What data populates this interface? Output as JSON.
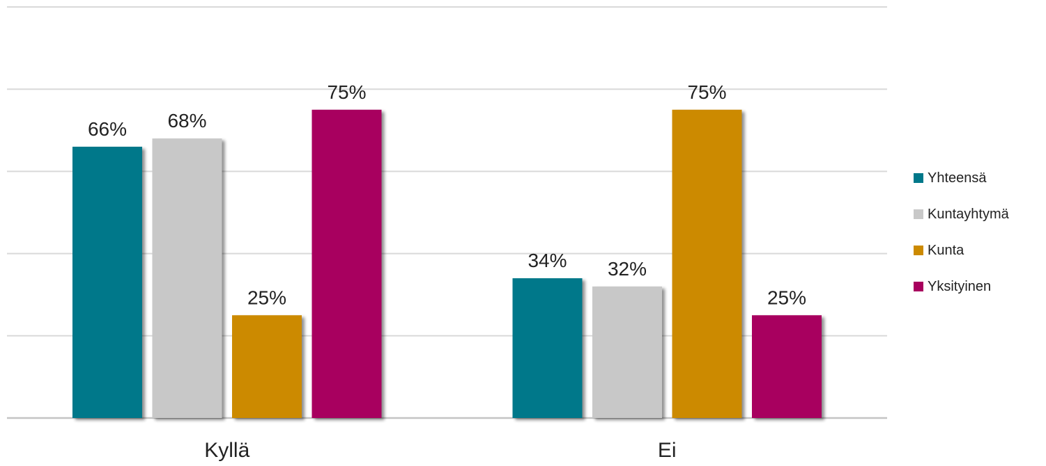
{
  "chart_data": {
    "type": "bar",
    "categories": [
      "Kyllä",
      "Ei"
    ],
    "series": [
      {
        "name": "Yhteensä",
        "values": [
          66,
          34
        ],
        "color": "#00788A"
      },
      {
        "name": "Kuntayhtymä",
        "values": [
          68,
          32
        ],
        "color": "#C8C8C8"
      },
      {
        "name": "Kunta",
        "values": [
          25,
          75
        ],
        "color": "#CC8A00"
      },
      {
        "name": "Yksityinen",
        "values": [
          75,
          25
        ],
        "color": "#A8005E"
      }
    ],
    "value_labels": [
      [
        "66%",
        "34%"
      ],
      [
        "68%",
        "32%"
      ],
      [
        "25%",
        "75%"
      ],
      [
        "75%",
        "25%"
      ]
    ],
    "ylim": [
      0,
      100
    ],
    "grid": true,
    "legend_position": "right"
  }
}
